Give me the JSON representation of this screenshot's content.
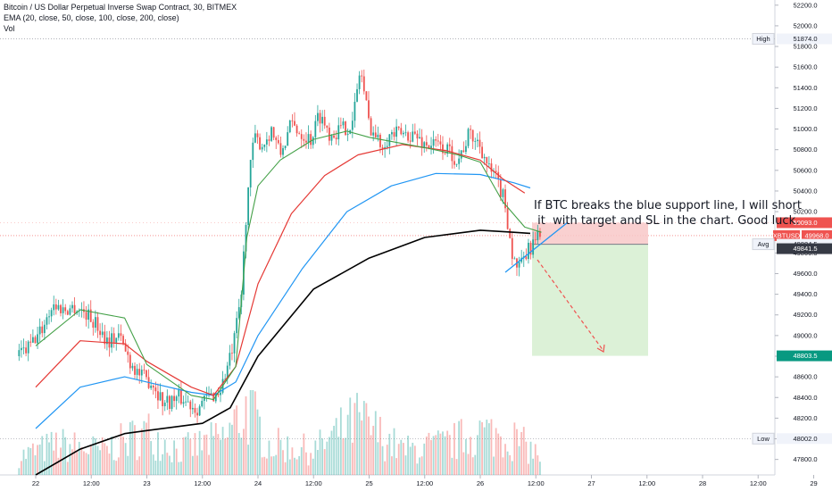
{
  "header": {
    "title": "Bitcoin / US Dollar Perpetual Inverse Swap Contract, 30, BITMEX",
    "indicator": "EMA (20, close, 50, close, 100, close, 200, close)",
    "volume": "Vol"
  },
  "annotation": {
    "text": "If BTC breaks the blue support line, I will short\n it  with target and SL in the chart. Good luck."
  },
  "colors": {
    "up": "#26a69a",
    "down": "#ef5350",
    "ema20": "#43a047",
    "ema50": "#e53935",
    "ema100": "#2196f3",
    "ema200": "#000000",
    "target": "#d8f0d3",
    "stop": "#f8c8c8"
  },
  "chart_data": {
    "type": "candlestick",
    "title": "Bitcoin / US Dollar Perpetual Inverse Swap Contract, 30, BITMEX",
    "ylim": [
      47650,
      52250
    ],
    "yticks": [
      "52200.0",
      "52000.0",
      "51800.0",
      "51600.0",
      "51400.0",
      "51200.0",
      "51000.0",
      "50800.0",
      "50600.0",
      "50400.0",
      "50200.0",
      "49800.0",
      "49600.0",
      "49400.0",
      "49200.0",
      "49000.0",
      "48800.0",
      "48600.0",
      "48400.0",
      "48200.0",
      "48000.0",
      "47800.0"
    ],
    "xticks": [
      "22",
      "12:00",
      "23",
      "12:00",
      "24",
      "12:00",
      "25",
      "12:00",
      "26",
      "12:00",
      "27",
      "12:00",
      "28",
      "12:00",
      "29"
    ],
    "high_label": "High",
    "high_value": "51874.0",
    "low_label": "Low",
    "low_value": "48002.0",
    "avg_label": "Avg",
    "avg_value": "49884.5",
    "symbol": "XBTUSD",
    "last_price": "49968.0",
    "countdown": "05:29",
    "stop_loss": "50093.0",
    "entry_level": "49841.5",
    "take_profit": "48803.5",
    "ema_periods": [
      20,
      50,
      100,
      200
    ],
    "ema20_key": [
      [
        22.0,
        48900
      ],
      [
        22.4,
        49250
      ],
      [
        22.8,
        49170
      ],
      [
        23.0,
        48720
      ],
      [
        23.4,
        48420
      ],
      [
        23.6,
        48380
      ],
      [
        23.8,
        48700
      ],
      [
        23.9,
        49950
      ],
      [
        24.0,
        50450
      ],
      [
        24.2,
        50700
      ],
      [
        24.5,
        50900
      ],
      [
        24.8,
        50980
      ],
      [
        25.0,
        50920
      ],
      [
        25.5,
        50820
      ],
      [
        25.8,
        50750
      ],
      [
        26.0,
        50680
      ],
      [
        26.2,
        50300
      ],
      [
        26.4,
        50050
      ],
      [
        26.55,
        50000
      ]
    ],
    "ema50_key": [
      [
        22.0,
        48500
      ],
      [
        22.4,
        48950
      ],
      [
        22.8,
        48920
      ],
      [
        23.0,
        48750
      ],
      [
        23.4,
        48500
      ],
      [
        23.6,
        48420
      ],
      [
        23.8,
        48700
      ],
      [
        24.0,
        49500
      ],
      [
        24.3,
        50180
      ],
      [
        24.6,
        50550
      ],
      [
        24.9,
        50750
      ],
      [
        25.3,
        50850
      ],
      [
        25.7,
        50790
      ],
      [
        26.0,
        50700
      ],
      [
        26.2,
        50520
      ],
      [
        26.4,
        50380
      ]
    ],
    "ema100_key": [
      [
        22.0,
        48100
      ],
      [
        22.4,
        48500
      ],
      [
        22.8,
        48600
      ],
      [
        23.0,
        48550
      ],
      [
        23.4,
        48450
      ],
      [
        23.6,
        48420
      ],
      [
        23.8,
        48550
      ],
      [
        24.0,
        49000
      ],
      [
        24.4,
        49650
      ],
      [
        24.8,
        50200
      ],
      [
        25.2,
        50450
      ],
      [
        25.6,
        50570
      ],
      [
        26.0,
        50560
      ],
      [
        26.3,
        50480
      ],
      [
        26.45,
        50430
      ]
    ],
    "ema200_key": [
      [
        22.0,
        47650
      ],
      [
        22.4,
        47900
      ],
      [
        22.8,
        48050
      ],
      [
        23.0,
        48080
      ],
      [
        23.5,
        48150
      ],
      [
        23.75,
        48300
      ],
      [
        24.0,
        48800
      ],
      [
        24.5,
        49450
      ],
      [
        25.0,
        49750
      ],
      [
        25.5,
        49950
      ],
      [
        26.0,
        50020
      ],
      [
        26.3,
        50000
      ],
      [
        26.45,
        49990
      ]
    ],
    "price_key": [
      [
        21.85,
        48800
      ],
      [
        21.95,
        48900
      ],
      [
        22.05,
        49050
      ],
      [
        22.15,
        49300
      ],
      [
        22.25,
        49250
      ],
      [
        22.35,
        49280
      ],
      [
        22.45,
        49220
      ],
      [
        22.55,
        49100
      ],
      [
        22.65,
        48950
      ],
      [
        22.75,
        49000
      ],
      [
        22.85,
        48750
      ],
      [
        22.95,
        48600
      ],
      [
        23.05,
        48550
      ],
      [
        23.15,
        48350
      ],
      [
        23.3,
        48400
      ],
      [
        23.45,
        48300
      ],
      [
        23.55,
        48400
      ],
      [
        23.65,
        48450
      ],
      [
        23.7,
        48600
      ],
      [
        23.78,
        48900
      ],
      [
        23.85,
        49400
      ],
      [
        23.9,
        50300
      ],
      [
        23.96,
        50900
      ],
      [
        24.05,
        50850
      ],
      [
        24.12,
        51000
      ],
      [
        24.2,
        50750
      ],
      [
        24.3,
        51050
      ],
      [
        24.4,
        50950
      ],
      [
        24.48,
        50900
      ],
      [
        24.55,
        51150
      ],
      [
        24.65,
        50950
      ],
      [
        24.75,
        51000
      ],
      [
        24.85,
        51050
      ],
      [
        24.92,
        51600
      ],
      [
        25.0,
        51050
      ],
      [
        25.1,
        50850
      ],
      [
        25.2,
        50950
      ],
      [
        25.3,
        50950
      ],
      [
        25.4,
        50950
      ],
      [
        25.5,
        50850
      ],
      [
        25.6,
        50850
      ],
      [
        25.7,
        50800
      ],
      [
        25.8,
        50700
      ],
      [
        25.9,
        50950
      ],
      [
        26.0,
        50850
      ],
      [
        26.08,
        50600
      ],
      [
        26.15,
        50500
      ],
      [
        26.22,
        50300
      ],
      [
        26.3,
        49700
      ],
      [
        26.36,
        49650
      ],
      [
        26.42,
        49800
      ],
      [
        26.48,
        49900
      ],
      [
        26.55,
        49968
      ]
    ],
    "volume_key": [
      [
        21.85,
        0.15
      ],
      [
        22.2,
        0.25
      ],
      [
        22.6,
        0.2
      ],
      [
        23.0,
        0.35
      ],
      [
        23.3,
        0.2
      ],
      [
        23.7,
        0.3
      ],
      [
        23.9,
        0.55
      ],
      [
        24.1,
        0.25
      ],
      [
        24.5,
        0.2
      ],
      [
        24.9,
        0.45
      ],
      [
        25.3,
        0.2
      ],
      [
        25.7,
        0.25
      ],
      [
        26.0,
        0.35
      ],
      [
        26.3,
        0.3
      ],
      [
        26.55,
        0.15
      ]
    ]
  }
}
